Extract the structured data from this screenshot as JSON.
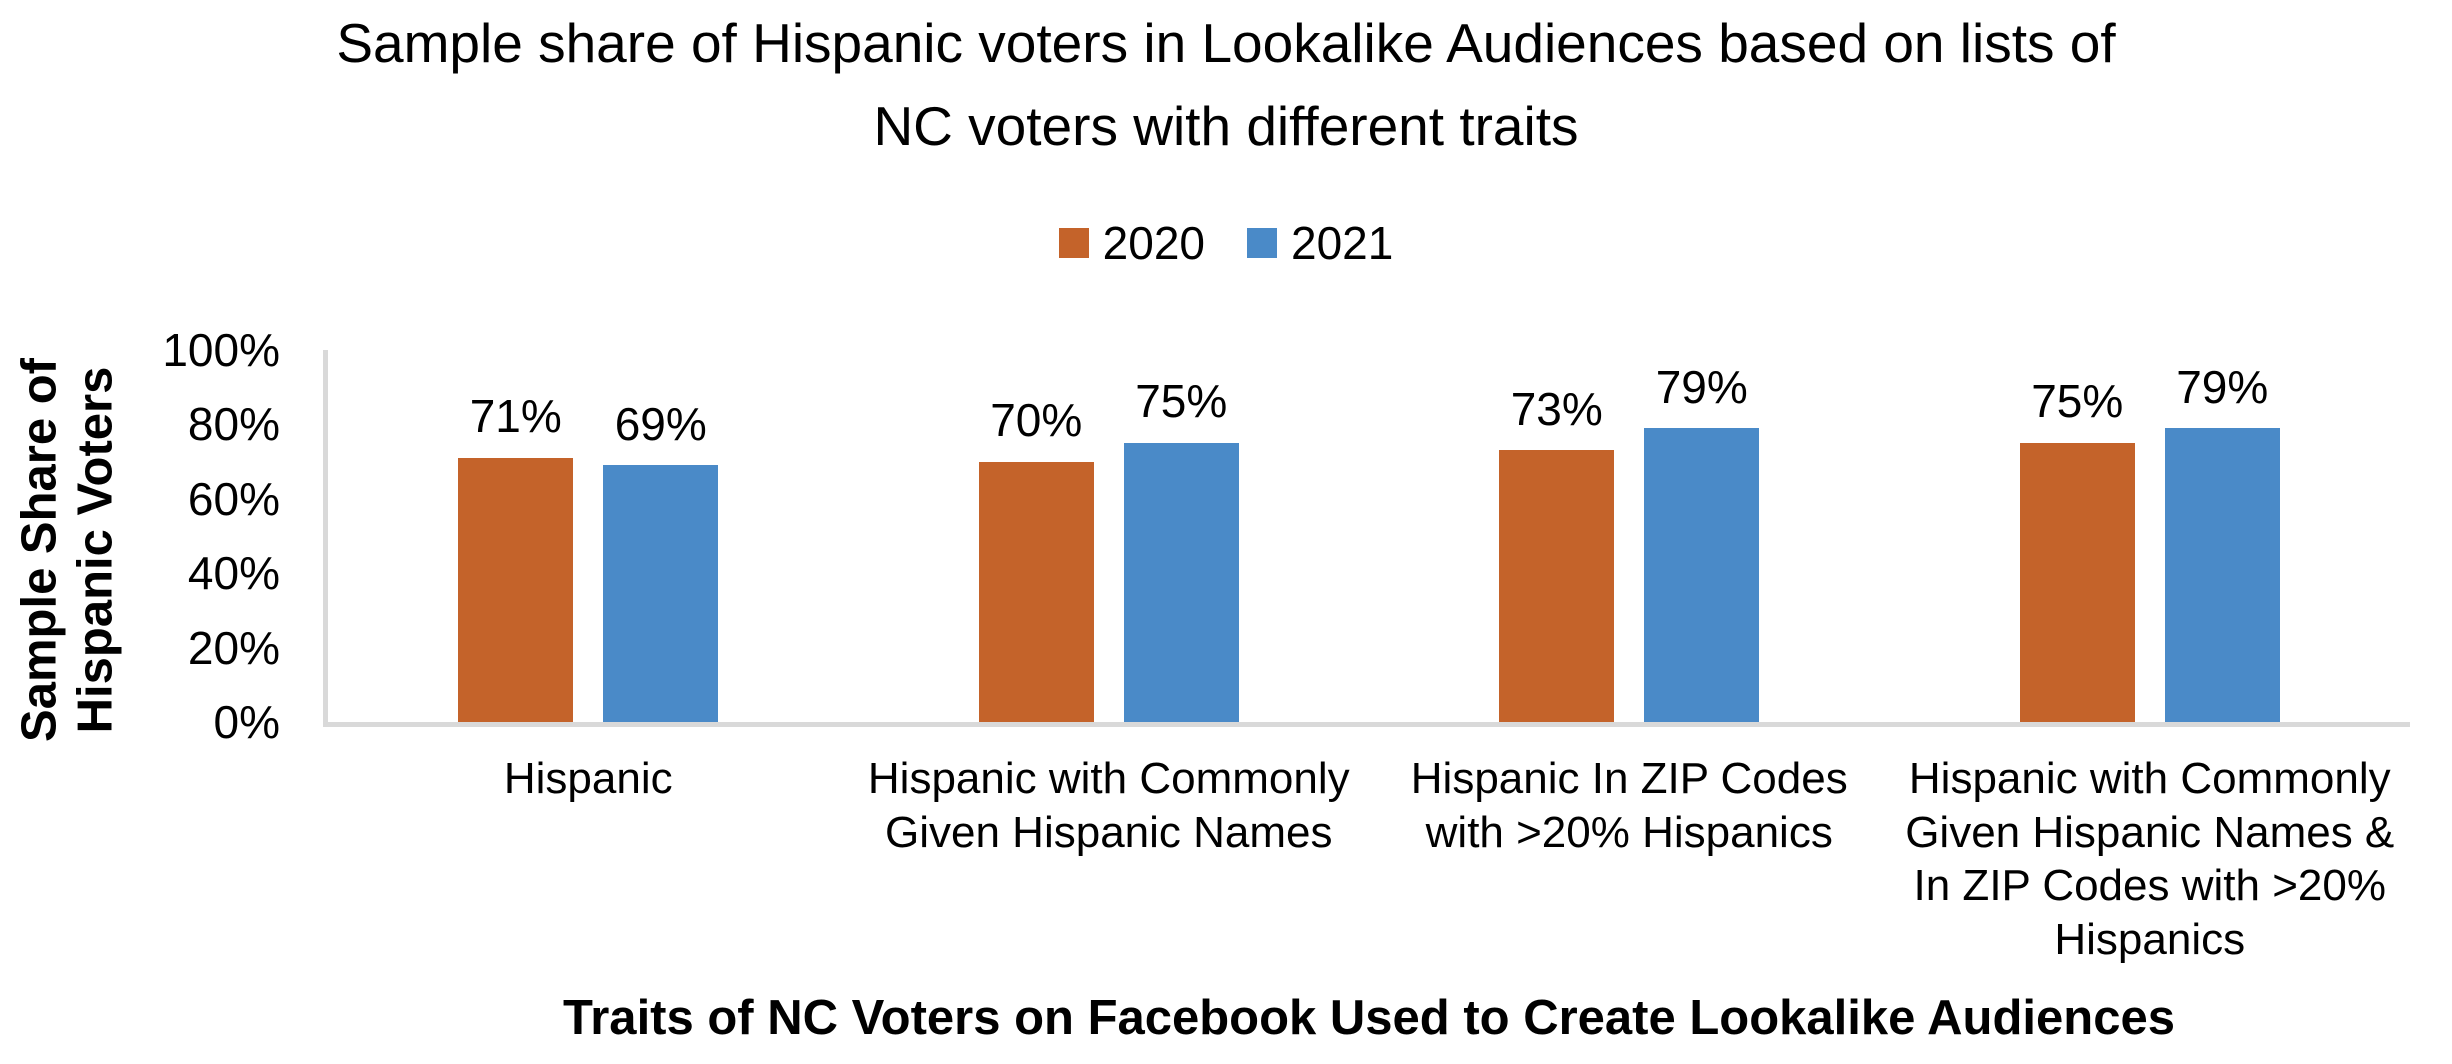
{
  "title": {
    "line1": "Sample share of Hispanic voters in Lookalike Audiences based on lists of",
    "line2": "NC voters with different traits"
  },
  "y_axis": {
    "title_line1": "Sample Share of",
    "title_line2": "Hispanic Voters"
  },
  "x_axis": {
    "title": "Traits of NC Voters on Facebook Used to Create Lookalike Audiences"
  },
  "colors": {
    "series_2020": "#C4632A",
    "series_2021": "#4A8AC8",
    "axis_line": "#D9D9D9",
    "text": "#000000"
  },
  "chart_data": {
    "type": "bar",
    "title": "Sample share of Hispanic voters in Lookalike Audiences based on lists of NC voters with different traits",
    "xlabel": "Traits of NC Voters on Facebook Used to Create Lookalike Audiences",
    "ylabel": "Sample Share of Hispanic Voters",
    "categories": [
      "Hispanic",
      "Hispanic with Commonly Given Hispanic Names",
      "Hispanic In ZIP Codes with >20% Hispanics",
      "Hispanic with Commonly Given Hispanic Names & In ZIP Codes with >20% Hispanics"
    ],
    "series": [
      {
        "name": "2020",
        "color": "#C4632A",
        "values": [
          71,
          70,
          73,
          75
        ]
      },
      {
        "name": "2021",
        "color": "#4A8AC8",
        "values": [
          69,
          75,
          79,
          79
        ]
      }
    ],
    "ylim": [
      0,
      100
    ],
    "yticks": [
      0,
      20,
      40,
      60,
      80,
      100
    ],
    "ytick_format": "{v}%",
    "value_label_format": "{v}%",
    "grid": false,
    "legend_position": "top-center"
  }
}
